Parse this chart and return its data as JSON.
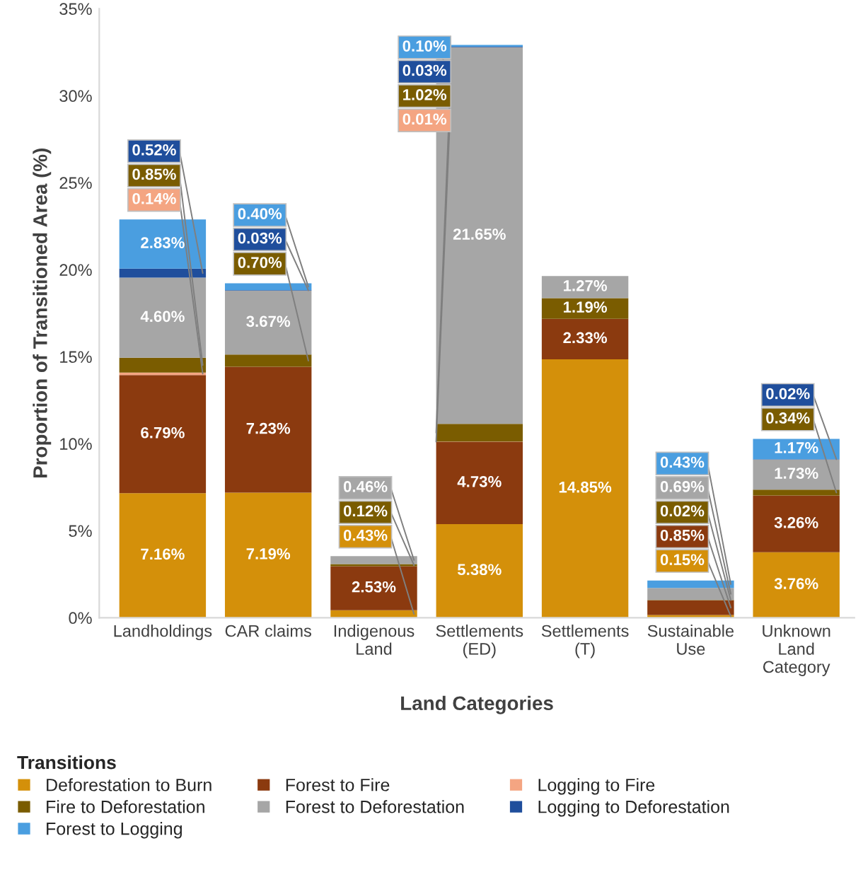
{
  "chart_data": {
    "type": "bar",
    "stacked": true,
    "xlabel": "Land Categories",
    "ylabel": "Proportion of Transitioned Area (%)",
    "legend_title": "Transitions",
    "legend": "bottom",
    "categories": [
      "Landholdings",
      "CAR claims",
      "Indigenous\nLand",
      "Settlements\n(ED)",
      "Settlements\n(T)",
      "Sustainable\nUse",
      "Unknown\nLand\nCategory"
    ],
    "ylim": [
      0,
      35
    ],
    "yticks": [
      {
        "value": 0,
        "label": "0%"
      },
      {
        "value": 5,
        "label": "5%"
      },
      {
        "value": 10,
        "label": "10%"
      },
      {
        "value": 15,
        "label": "15%"
      },
      {
        "value": 20,
        "label": "20%"
      },
      {
        "value": 25,
        "label": "25%"
      },
      {
        "value": 30,
        "label": "30%"
      },
      {
        "value": 35,
        "label": "35%"
      }
    ],
    "series": [
      {
        "name": "Deforestation to Burn",
        "color": "#d4900a",
        "values": [
          7.16,
          7.19,
          0.43,
          5.38,
          14.85,
          0.15,
          3.76
        ],
        "value_labels": [
          "7.16%",
          "7.19%",
          "0.43%",
          "5.38%",
          "14.85%",
          "0.15%",
          "3.76%"
        ]
      },
      {
        "name": "Forest to Fire",
        "color": "#8b3a0f",
        "values": [
          6.79,
          7.23,
          2.53,
          4.73,
          2.33,
          0.85,
          3.26
        ],
        "value_labels": [
          "6.79%",
          "7.23%",
          "2.53%",
          "4.73%",
          "2.33%",
          "0.85%",
          "3.26%"
        ]
      },
      {
        "name": "Logging to Fire",
        "color": "#f4a582",
        "values": [
          0.14,
          null,
          null,
          0.01,
          null,
          null,
          null
        ],
        "value_labels": [
          "0.14%",
          null,
          null,
          "0.01%",
          null,
          null,
          null
        ]
      },
      {
        "name": "Fire to Deforestation",
        "color": "#7a5c00",
        "values": [
          0.85,
          0.7,
          0.12,
          1.02,
          1.19,
          0.02,
          0.34
        ],
        "value_labels": [
          "0.85%",
          "0.70%",
          "0.12%",
          "1.02%",
          "1.19%",
          "0.02%",
          "0.34%"
        ]
      },
      {
        "name": "Forest to Deforestation",
        "color": "#a6a6a6",
        "values": [
          4.6,
          3.67,
          0.46,
          21.65,
          1.27,
          0.69,
          1.73
        ],
        "value_labels": [
          "4.60%",
          "3.67%",
          "0.46%",
          "21.65%",
          "1.27%",
          "0.69%",
          "1.73%"
        ]
      },
      {
        "name": "Logging to Deforestation",
        "color": "#1f4e9c",
        "values": [
          0.52,
          0.03,
          null,
          0.03,
          null,
          null,
          0.02
        ],
        "value_labels": [
          "0.52%",
          "0.03%",
          null,
          "0.03%",
          null,
          null,
          "0.02%"
        ]
      },
      {
        "name": "Forest to Logging",
        "color": "#4a9ee0",
        "values": [
          2.83,
          0.4,
          null,
          0.1,
          null,
          0.43,
          1.17
        ],
        "value_labels": [
          "2.83%",
          "0.40%",
          null,
          "0.10%",
          null,
          "0.43%",
          "1.17%"
        ]
      }
    ]
  }
}
